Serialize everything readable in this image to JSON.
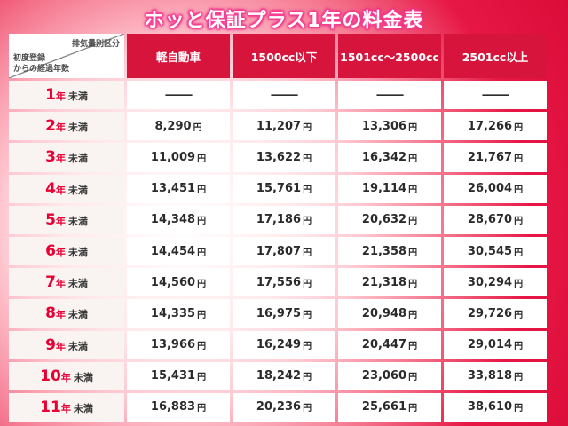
{
  "title": "ホッと保証プラス1年の料金表",
  "table": {
    "corner_top_right": "排気量別区分",
    "corner_bottom_left_line1": "初度登録",
    "corner_bottom_left_line2": "からの経過年数",
    "columns": [
      "軽自動車",
      "1500cc以下",
      "1501cc〜2500cc",
      "2501cc以上"
    ],
    "rows": [
      {
        "year_num": "1",
        "year_unit": "年",
        "suffix": "未満",
        "values": [
          "—",
          "—",
          "—",
          "—"
        ]
      },
      {
        "year_num": "2",
        "year_unit": "年",
        "suffix": "未満",
        "values": [
          "8,290円",
          "11,207円",
          "13,306円",
          "17,266円"
        ]
      },
      {
        "year_num": "3",
        "year_unit": "年",
        "suffix": "未満",
        "values": [
          "11,009円",
          "13,622円",
          "16,342円",
          "21,767円"
        ]
      },
      {
        "year_num": "4",
        "year_unit": "年",
        "suffix": "未満",
        "values": [
          "13,451円",
          "15,761円",
          "19,114円",
          "26,004円"
        ]
      },
      {
        "year_num": "5",
        "year_unit": "年",
        "suffix": "未満",
        "values": [
          "14,348円",
          "17,186円",
          "20,632円",
          "28,670円"
        ]
      },
      {
        "year_num": "6",
        "year_unit": "年",
        "suffix": "未満",
        "values": [
          "14,454円",
          "17,807円",
          "21,358円",
          "30,545円"
        ]
      },
      {
        "year_num": "7",
        "year_unit": "年",
        "suffix": "未満",
        "values": [
          "14,560円",
          "17,556円",
          "21,318円",
          "30,294円"
        ]
      },
      {
        "year_num": "8",
        "year_unit": "年",
        "suffix": "未満",
        "values": [
          "14,335円",
          "16,975円",
          "20,948円",
          "29,726円"
        ]
      },
      {
        "year_num": "9",
        "year_unit": "年",
        "suffix": "未満",
        "values": [
          "13,966円",
          "16,249円",
          "20,447円",
          "29,014円"
        ]
      },
      {
        "year_num": "10",
        "year_unit": "年",
        "suffix": "未満",
        "values": [
          "15,431円",
          "18,242円",
          "23,060円",
          "33,818円"
        ]
      },
      {
        "year_num": "11",
        "year_unit": "年",
        "suffix": "未満",
        "values": [
          "16,883円",
          "20,236円",
          "25,661円",
          "38,610円"
        ]
      }
    ]
  },
  "colors": {
    "header_bg": "#d6143c",
    "year_red": "#e60033",
    "value_ink": "#2b2b2b",
    "background_red": "#dc0c39",
    "title_glow": "#ff4f9b"
  },
  "chart_data": {
    "type": "table",
    "title": "ホッと保証プラス1年の料金表",
    "corner_labels": {
      "top_right": "排気量別区分",
      "bottom_left": "初度登録からの経過年数"
    },
    "columns": [
      "軽自動車",
      "1500cc以下",
      "1501cc〜2500cc",
      "2501cc以上"
    ],
    "row_labels": [
      "1年未満",
      "2年未満",
      "3年未満",
      "4年未満",
      "5年未満",
      "6年未満",
      "7年未満",
      "8年未満",
      "9年未満",
      "10年未満",
      "11年未満"
    ],
    "values_yen": [
      [
        null,
        null,
        null,
        null
      ],
      [
        8290,
        11207,
        13306,
        17266
      ],
      [
        11009,
        13622,
        16342,
        21767
      ],
      [
        13451,
        15761,
        19114,
        26004
      ],
      [
        14348,
        17186,
        20632,
        28670
      ],
      [
        14454,
        17807,
        21358,
        30545
      ],
      [
        14560,
        17556,
        21318,
        30294
      ],
      [
        14335,
        16975,
        20948,
        29726
      ],
      [
        13966,
        16249,
        20447,
        29014
      ],
      [
        15431,
        18242,
        23060,
        33818
      ],
      [
        16883,
        20236,
        25661,
        38610
      ]
    ]
  }
}
